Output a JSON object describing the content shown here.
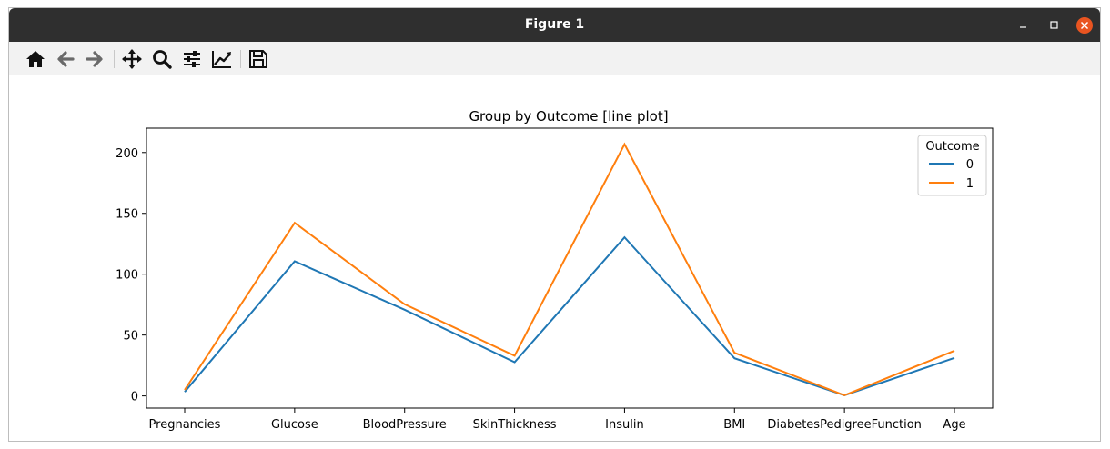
{
  "window": {
    "title": "Figure 1"
  },
  "toolbar": {
    "icons": [
      "home-icon",
      "back-arrow-icon",
      "forward-arrow-icon",
      "pan-icon",
      "zoom-icon",
      "configure-subplots-icon",
      "edit-axis-icon",
      "save-icon"
    ]
  },
  "colors": {
    "series0": "#1f77b4",
    "series1": "#ff7f0e"
  },
  "chart_data": {
    "type": "line",
    "title": "Group by Outcome [line plot]",
    "categories": [
      "Pregnancies",
      "Glucose",
      "BloodPressure",
      "SkinThickness",
      "Insulin",
      "BMI",
      "DiabetesPedigreeFunction",
      "Age"
    ],
    "series": [
      {
        "name": "0",
        "values": [
          3.3,
          110.6,
          70.8,
          27.7,
          130.3,
          30.9,
          0.43,
          31.2
        ]
      },
      {
        "name": "1",
        "values": [
          4.9,
          142.2,
          75.3,
          33.0,
          206.8,
          35.4,
          0.55,
          37.1
        ]
      }
    ],
    "ylim": [
      -10,
      220
    ],
    "yticks": [
      0,
      50,
      100,
      150,
      200
    ],
    "legend": {
      "title": "Outcome",
      "position": "upper right"
    },
    "grid": false
  }
}
